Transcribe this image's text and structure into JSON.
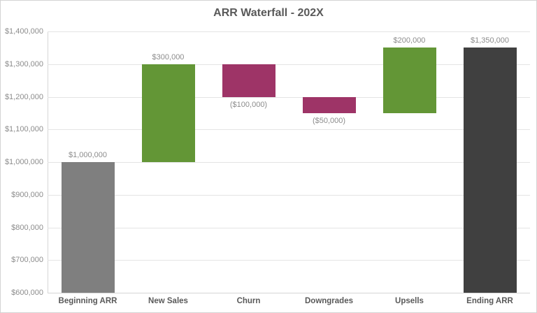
{
  "chart_data": {
    "type": "bar",
    "subtype": "waterfall",
    "title": "ARR Waterfall - 202X",
    "xlabel": "",
    "ylabel": "",
    "ylim": [
      600000,
      1400000
    ],
    "ytick_step": 100000,
    "ytick_labels": [
      "$600,000",
      "$700,000",
      "$800,000",
      "$900,000",
      "$1,000,000",
      "$1,100,000",
      "$1,200,000",
      "$1,300,000",
      "$1,400,000"
    ],
    "grid": true,
    "legend": "none",
    "categories": [
      "Beginning ARR",
      "New Sales",
      "Churn",
      "Downgrades",
      "Upsells",
      "Ending ARR"
    ],
    "bars": [
      {
        "category": "Beginning ARR",
        "role": "start",
        "from": 600000,
        "to": 1000000,
        "value": 1000000,
        "value_label": "$1,000,000",
        "label_position": "above",
        "color": "#7f7f7f"
      },
      {
        "category": "New Sales",
        "role": "increase",
        "from": 1000000,
        "to": 1300000,
        "value": 300000,
        "value_label": "$300,000",
        "label_position": "above",
        "color": "#639636"
      },
      {
        "category": "Churn",
        "role": "decrease",
        "from": 1300000,
        "to": 1200000,
        "value": -100000,
        "value_label": "($100,000)",
        "label_position": "below",
        "color": "#9e3467"
      },
      {
        "category": "Downgrades",
        "role": "decrease",
        "from": 1200000,
        "to": 1150000,
        "value": -50000,
        "value_label": "($50,000)",
        "label_position": "below",
        "color": "#9e3467"
      },
      {
        "category": "Upsells",
        "role": "increase",
        "from": 1150000,
        "to": 1350000,
        "value": 200000,
        "value_label": "$200,000",
        "label_position": "above",
        "color": "#639636"
      },
      {
        "category": "Ending ARR",
        "role": "total",
        "from": 600000,
        "to": 1350000,
        "value": 1350000,
        "value_label": "$1,350,000",
        "label_position": "above",
        "color": "#404040"
      }
    ],
    "colors": {
      "start_bar": "#7f7f7f",
      "increase_bar": "#639636",
      "decrease_bar": "#9e3467",
      "total_bar": "#404040",
      "title_text": "#595959",
      "axis_tick_text": "#8c8c8c",
      "category_text": "#595959",
      "gridline": "#e4e4e4",
      "axis_line": "#d6d6d6",
      "background": "#ffffff"
    }
  }
}
